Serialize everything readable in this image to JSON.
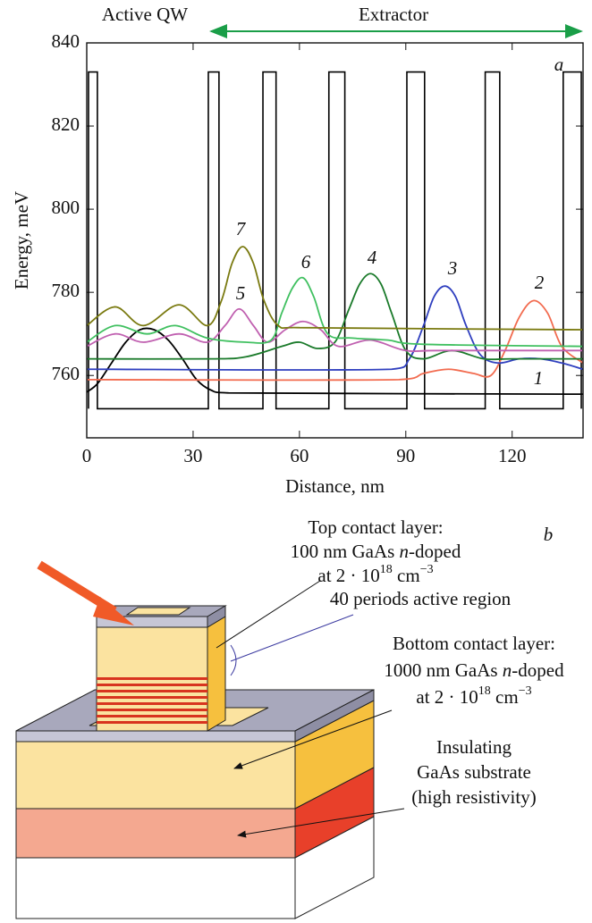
{
  "chart_data": {
    "type": "line",
    "panel": "a",
    "x_label": "Distance, nm",
    "y_label": "Energy, meV",
    "xlim": [
      0,
      140
    ],
    "ylim": [
      745,
      840
    ],
    "xticks": [
      0,
      30,
      60,
      90,
      120
    ],
    "yticks": [
      760,
      780,
      800,
      820,
      840
    ],
    "annotations": [
      {
        "text": "Active QW",
        "color": "#e8302a"
      },
      {
        "text": "Extractor",
        "color": "#1a9e48"
      }
    ],
    "profile": {
      "color": "#000000",
      "x": [
        0.5,
        0.5,
        3,
        3,
        34.3,
        34.3,
        37.3,
        37.3,
        49.7,
        49.7,
        53.4,
        53.4,
        68.3,
        68.3,
        72.8,
        72.8,
        90.3,
        90.3,
        95.3,
        95.3,
        112.4,
        112.4,
        116.5,
        116.5,
        134.4,
        134.4,
        139.5,
        139.5
      ],
      "values": [
        752,
        833,
        833,
        752,
        752,
        833,
        833,
        752,
        752,
        833,
        833,
        752,
        752,
        833,
        833,
        752,
        752,
        833,
        833,
        752,
        752,
        833,
        833,
        752,
        752,
        833,
        833,
        752
      ]
    },
    "series": [
      {
        "name": "1",
        "color": "#000000",
        "x": [
          0,
          3,
          7,
          11,
          15,
          19,
          23,
          27,
          31,
          35,
          40,
          140
        ],
        "values": [
          756,
          758,
          763,
          768,
          771,
          771,
          768.5,
          764,
          759,
          756.5,
          755.8,
          755.5
        ]
      },
      {
        "name": "2",
        "color": "#f26b4f",
        "x": [
          0,
          88,
          95,
          102,
          109,
          114,
          118,
          122,
          126,
          130,
          134,
          140
        ],
        "values": [
          759,
          759,
          760.5,
          761.5,
          760.5,
          760,
          766,
          774,
          778,
          775,
          767,
          763
        ]
      },
      {
        "name": "3",
        "color": "#2f3fbf",
        "x": [
          0,
          86,
          91,
          95,
          98,
          101,
          104,
          107,
          111,
          116,
          122,
          128,
          134,
          140
        ],
        "values": [
          761.5,
          761.5,
          764,
          772,
          779,
          781.5,
          779,
          772,
          765,
          763,
          764,
          764,
          763,
          761.5
        ]
      },
      {
        "name": "4",
        "color": "#1a7a2a",
        "x": [
          0,
          35,
          45,
          55,
          60,
          65,
          70,
          74,
          77,
          80,
          83,
          86,
          90,
          95,
          103,
          112,
          120,
          140
        ],
        "values": [
          764,
          764,
          764.5,
          767,
          768,
          766.5,
          768,
          776,
          782,
          784.5,
          782,
          775,
          766,
          764,
          766,
          764,
          764,
          764
        ]
      },
      {
        "name": "5",
        "color": "#c060b0",
        "x": [
          0,
          8,
          16,
          26,
          34,
          39,
          43,
          47,
          51,
          56,
          61,
          66,
          71,
          80,
          90,
          100,
          140
        ],
        "values": [
          767,
          770,
          768,
          770,
          768,
          772,
          776,
          772,
          768,
          771,
          773,
          771,
          767,
          768.5,
          766,
          766,
          766
        ]
      },
      {
        "name": "6",
        "color": "#40c060",
        "x": [
          0,
          8,
          17,
          25,
          34,
          45,
          52,
          55,
          58,
          61,
          64,
          68,
          75,
          85,
          95,
          140
        ],
        "values": [
          768,
          772,
          770,
          772,
          769,
          768,
          768.5,
          775,
          781,
          783.5,
          779,
          770,
          769,
          768.5,
          767.5,
          767
        ]
      },
      {
        "name": "7",
        "color": "#7a7a10",
        "x": [
          0,
          8,
          16,
          26,
          34,
          38,
          41,
          44,
          47,
          50,
          54,
          60,
          140
        ],
        "values": [
          772,
          776.5,
          772,
          777,
          772,
          778,
          787,
          791,
          787,
          778,
          772,
          771.5,
          771
        ]
      }
    ]
  },
  "diagram": {
    "panel": "b",
    "top_contact": [
      [
        "Top contact layer:"
      ],
      [
        "100 nm GaAs ",
        "n",
        "-doped"
      ],
      [
        "at 2 · 10",
        "18",
        " cm",
        "−3"
      ]
    ],
    "active_region": "40 periods active region",
    "bottom_contact": [
      [
        "Bottom contact layer:"
      ],
      [
        "1000 nm GaAs ",
        "n",
        "-doped"
      ],
      [
        "at 2 · 10",
        "18",
        " cm",
        "−3"
      ]
    ],
    "substrate": [
      [
        "Insulating"
      ],
      [
        "GaAs substrate"
      ],
      [
        "(high resistivity)"
      ]
    ]
  }
}
